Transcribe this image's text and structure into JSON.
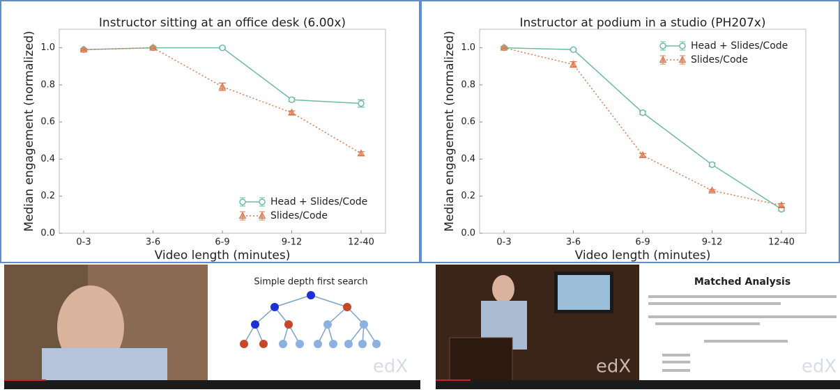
{
  "chart_data": [
    {
      "type": "line",
      "title": "Instructor sitting at an office desk (6.00x)",
      "x_label": "Video length (minutes)",
      "y_label": "Median engagement (normalized)",
      "categories": [
        "0-3",
        "3-6",
        "6-9",
        "9-12",
        "12-40"
      ],
      "series": [
        {
          "name": "Head + Slides/Code",
          "color": "#6dbba3",
          "marker": "circle",
          "linestyle": "solid",
          "values": [
            0.99,
            1.0,
            1.0,
            0.72,
            0.7
          ],
          "errors": [
            0.005,
            0.005,
            0.005,
            0.01,
            0.02
          ]
        },
        {
          "name": "Slides/Code",
          "color": "#d9774d",
          "marker": "triangle",
          "linestyle": "dotted",
          "values": [
            0.99,
            1.0,
            0.79,
            0.65,
            0.43
          ],
          "errors": [
            0.005,
            0.005,
            0.02,
            0.01,
            0.01
          ]
        }
      ],
      "ylim": [
        0,
        1.1
      ],
      "yticks": [
        {
          "value": 0,
          "label": "0.0"
        },
        0.2,
        0.4,
        0.6,
        0.8,
        {
          "value": 1,
          "label": "1.0"
        }
      ],
      "legend": "lower right"
    },
    {
      "type": "line",
      "title": "Instructor at podium in a studio (PH207x)",
      "x_label": "Video length (minutes)",
      "y_label": "Median engagement (normalized)",
      "categories": [
        "0-3",
        "3-6",
        "6-9",
        "9-12",
        "12-40"
      ],
      "series": [
        {
          "name": "Head + Slides/Code",
          "color": "#6dbba3",
          "marker": "circle",
          "linestyle": "solid",
          "values": [
            1.0,
            0.99,
            0.65,
            0.37,
            0.13
          ],
          "errors": [
            0.005,
            0.005,
            0.01,
            0.01,
            0.01
          ]
        },
        {
          "name": "Slides/Code",
          "color": "#d9774d",
          "marker": "triangle",
          "linestyle": "dotted",
          "values": [
            1.0,
            0.91,
            0.42,
            0.23,
            0.15
          ],
          "errors": [
            0.005,
            0.015,
            0.01,
            0.005,
            0.01
          ]
        }
      ],
      "ylim": [
        0,
        1.1
      ],
      "yticks": [
        {
          "value": 0,
          "label": "0.0"
        },
        0.2,
        0.4,
        0.6,
        0.8,
        {
          "value": 1,
          "label": "1.0"
        }
      ],
      "legend": "upper right"
    }
  ],
  "video_frames": {
    "slide_left_title": "Simple depth first search",
    "slide_right_title": "Matched Analysis",
    "watermark": "edX"
  }
}
